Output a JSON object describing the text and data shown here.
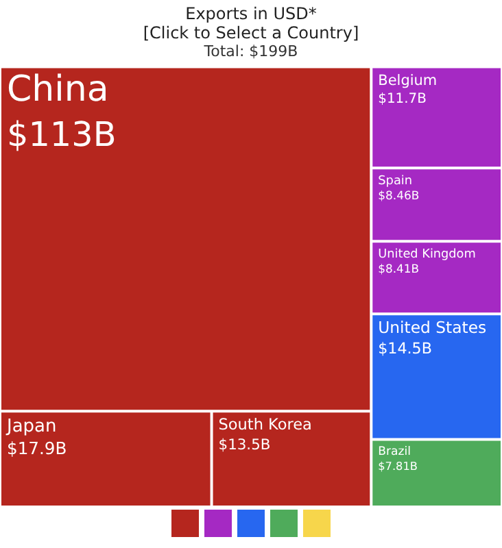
{
  "chart_data": {
    "type": "other",
    "title": "Exports in USD*\n[Click to Select a Country]",
    "subtitle": "Total: $199B",
    "categories": [
      "China",
      "Japan",
      "South Korea",
      "Belgium",
      "Spain",
      "United Kingdom",
      "United States",
      "Brazil"
    ],
    "series": [
      {
        "color": "#b5261e",
        "values": [
          113,
          17.9,
          13.5,
          null,
          null,
          null,
          null,
          null
        ],
        "value_labels": [
          "$113B",
          "$17.9B",
          "$13.5B",
          null,
          null,
          null,
          null,
          null
        ]
      },
      {
        "color": "#a529c3",
        "values": [
          null,
          null,
          null,
          11.7,
          8.46,
          8.41,
          null,
          null
        ],
        "value_labels": [
          null,
          null,
          null,
          "$11.7B",
          "$8.46B",
          "$8.41B",
          null,
          null
        ]
      },
      {
        "color": "#2767f0",
        "values": [
          null,
          null,
          null,
          null,
          null,
          null,
          14.5,
          null
        ],
        "value_labels": [
          null,
          null,
          null,
          null,
          null,
          null,
          "$14.5B",
          null
        ]
      },
      {
        "color": "#4fab5b",
        "values": [
          null,
          null,
          null,
          null,
          null,
          null,
          null,
          7.81
        ],
        "value_labels": [
          null,
          null,
          null,
          null,
          null,
          null,
          null,
          "$7.81B"
        ]
      },
      {
        "color": "#f7d64b",
        "values": [
          null,
          null,
          null,
          null,
          null,
          null,
          null,
          null
        ]
      }
    ]
  }
}
